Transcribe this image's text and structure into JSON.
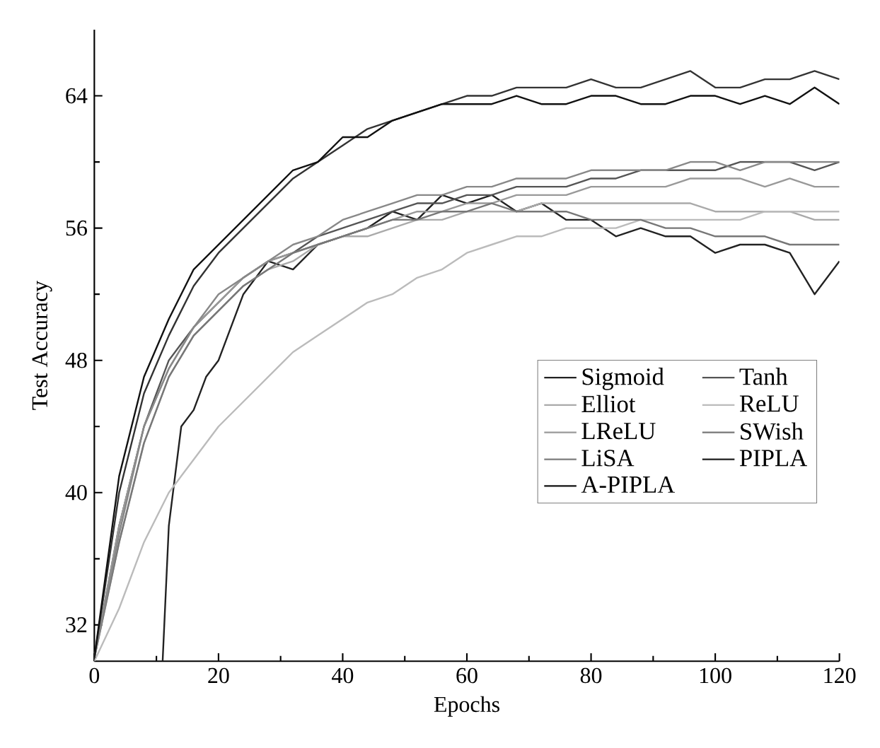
{
  "chart_data": {
    "type": "line",
    "xlabel": "Epochs",
    "ylabel": "Test Accuracy",
    "x": [
      0,
      4,
      8,
      12,
      16,
      20,
      24,
      28,
      32,
      36,
      40,
      44,
      48,
      52,
      56,
      60,
      64,
      68,
      72,
      76,
      80,
      84,
      88,
      92,
      96,
      100,
      104,
      108,
      112,
      116,
      120
    ],
    "xlim": [
      0,
      120
    ],
    "ylim": [
      29.8,
      68
    ],
    "xticks": [
      0,
      20,
      40,
      60,
      80,
      100,
      120
    ],
    "yticks": [
      32,
      40,
      48,
      56,
      64
    ],
    "legend": "right",
    "line_style": "solid",
    "series": [
      {
        "name": "Sigmoid",
        "color": "#222222",
        "x": [
          11,
          12,
          14,
          16,
          18,
          20,
          24,
          28,
          32,
          36,
          40,
          44,
          48,
          52,
          56,
          60,
          64,
          68,
          72,
          76,
          80,
          84,
          88,
          92,
          96,
          100,
          104,
          108,
          112,
          116,
          120
        ],
        "values": [
          29.8,
          38,
          44,
          45,
          47,
          48,
          52,
          54,
          53.5,
          55,
          55.5,
          56,
          57,
          56.5,
          58,
          57.5,
          58,
          57,
          57.5,
          56.5,
          56.5,
          55.5,
          56,
          55.5,
          55.5,
          54.5,
          55,
          55,
          54.5,
          52,
          54
        ]
      },
      {
        "name": "Tanh",
        "color": "#555555",
        "values": [
          30,
          38,
          44,
          48,
          50,
          51.5,
          53,
          54,
          54.5,
          55.5,
          56,
          56.5,
          57,
          57.5,
          57.5,
          58,
          58,
          58.5,
          58.5,
          58.5,
          59,
          59,
          59.5,
          59.5,
          59.5,
          59.5,
          60,
          60,
          60,
          59.5,
          60
        ]
      },
      {
        "name": "Elliot",
        "color": "#aaaaaa",
        "values": [
          30,
          37,
          43,
          47,
          49.5,
          51,
          52.5,
          53.5,
          54,
          55,
          55.5,
          55.5,
          56,
          56.5,
          56.5,
          57,
          57,
          57,
          57.5,
          57.5,
          57.5,
          57.5,
          57.5,
          57.5,
          57.5,
          57,
          57,
          57,
          57,
          56.5,
          56.5
        ]
      },
      {
        "name": "ReLU",
        "color": "#bbbbbb",
        "values": [
          29.8,
          33,
          37,
          40,
          42,
          44,
          45.5,
          47,
          48.5,
          49.5,
          50.5,
          51.5,
          52,
          53,
          53.5,
          54.5,
          55,
          55.5,
          55.5,
          56,
          56,
          56,
          56.5,
          56.5,
          56.5,
          56.5,
          56.5,
          57,
          57,
          57,
          57
        ]
      },
      {
        "name": "LReLU",
        "color": "#999999",
        "values": [
          30,
          38,
          44,
          47.5,
          50,
          51.5,
          53,
          54,
          54.5,
          55,
          55.5,
          56,
          56.5,
          57,
          57,
          57.5,
          57.5,
          58,
          58,
          58,
          58.5,
          58.5,
          58.5,
          58.5,
          59,
          59,
          59,
          58.5,
          59,
          58.5,
          58.5
        ]
      },
      {
        "name": "SWish",
        "color": "#777777",
        "values": [
          30,
          37,
          43,
          47,
          49.5,
          51,
          52.5,
          53.5,
          54.5,
          55,
          55.5,
          56,
          56.5,
          56.5,
          57,
          57,
          57.5,
          57,
          57,
          57,
          56.5,
          56.5,
          56.5,
          56,
          56,
          55.5,
          55.5,
          55.5,
          55,
          55,
          55
        ]
      },
      {
        "name": "LiSA",
        "color": "#888888",
        "values": [
          30,
          37.5,
          44,
          47.5,
          50,
          52,
          53,
          54,
          55,
          55.5,
          56.5,
          57,
          57.5,
          58,
          58,
          58.5,
          58.5,
          59,
          59,
          59,
          59.5,
          59.5,
          59.5,
          59.5,
          60,
          60,
          59.5,
          60,
          60,
          60,
          60
        ]
      },
      {
        "name": "PIPLA",
        "color": "#333333",
        "values": [
          30,
          40,
          46,
          49.5,
          52.5,
          54.5,
          56,
          57.5,
          59,
          60,
          61,
          62,
          62.5,
          63,
          63.5,
          64,
          64,
          64.5,
          64.5,
          64.5,
          65,
          64.5,
          64.5,
          65,
          65.5,
          64.5,
          64.5,
          65,
          65,
          65.5,
          65
        ]
      },
      {
        "name": "A-PIPLA",
        "color": "#111111",
        "values": [
          30,
          41,
          47,
          50.5,
          53.5,
          55,
          56.5,
          58,
          59.5,
          60,
          61.5,
          61.5,
          62.5,
          63,
          63.5,
          63.5,
          63.5,
          64,
          63.5,
          63.5,
          64,
          64,
          63.5,
          63.5,
          64,
          64,
          63.5,
          64,
          63.5,
          64.5,
          63.5
        ]
      }
    ]
  }
}
